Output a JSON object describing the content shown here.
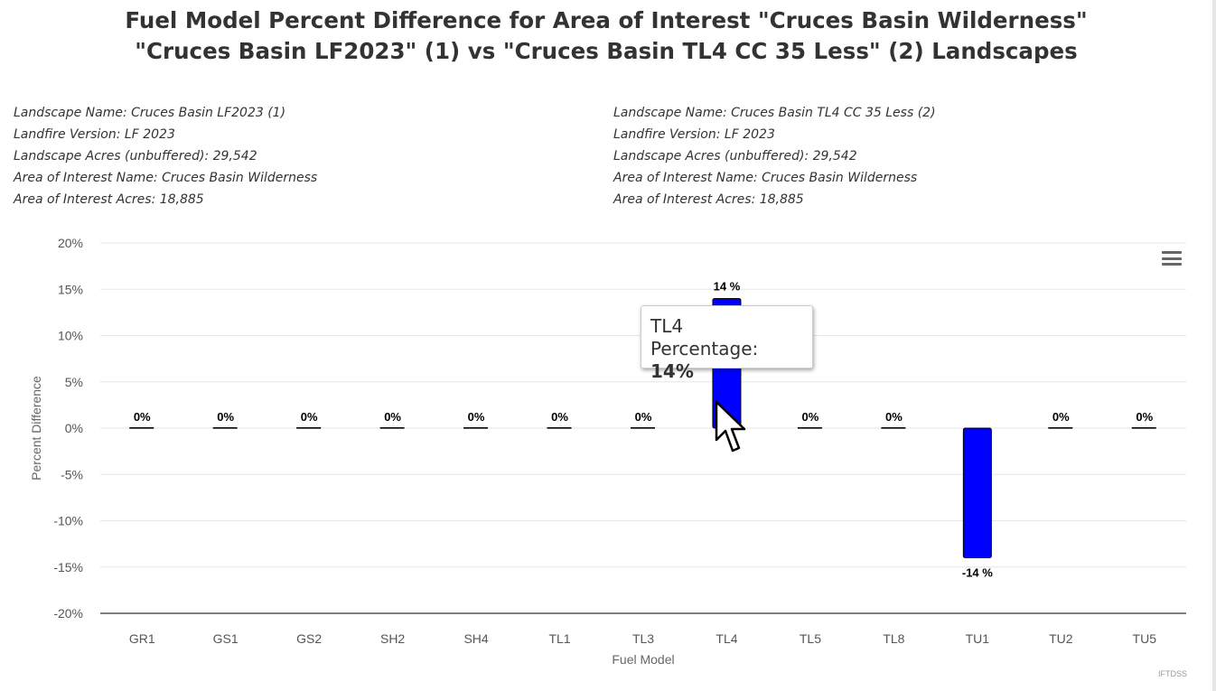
{
  "title": {
    "line1": "Fuel Model Percent Difference for Area of Interest \"Cruces Basin Wilderness\"",
    "line2": "\"Cruces Basin LF2023\" (1) vs \"Cruces Basin TL4 CC 35 Less\" (2) Landscapes"
  },
  "info_left": [
    "Landscape Name: Cruces Basin LF2023 (1)",
    "Landfire Version: LF 2023",
    "Landscape Acres (unbuffered): 29,542",
    "Area of Interest Name: Cruces Basin Wilderness",
    "Area of Interest Acres: 18,885"
  ],
  "info_right": [
    "Landscape Name: Cruces Basin TL4 CC 35 Less (2)",
    "Landfire Version: LF 2023",
    "Landscape Acres (unbuffered): 29,542",
    "Area of Interest Name: Cruces Basin Wilderness",
    "Area of Interest Acres: 18,885"
  ],
  "chart_data": {
    "type": "bar",
    "categories": [
      "GR1",
      "GS1",
      "GS2",
      "SH2",
      "SH4",
      "TL1",
      "TL3",
      "TL4",
      "TL5",
      "TL8",
      "TU1",
      "TU2",
      "TU5"
    ],
    "values": [
      0,
      0,
      0,
      0,
      0,
      0,
      0,
      14,
      0,
      0,
      -14,
      0,
      0
    ],
    "data_labels": [
      "0%",
      "0%",
      "0%",
      "0%",
      "0%",
      "0%",
      "0%",
      "14 %",
      "0%",
      "0%",
      "-14 %",
      "0%",
      "0%"
    ],
    "xlabel": "Fuel Model",
    "ylabel": "Percent Difference",
    "ylim": [
      -20,
      20
    ],
    "yticks": [
      20,
      15,
      10,
      5,
      0,
      -5,
      -10,
      -15,
      -20
    ],
    "ytick_suffix": "%",
    "grid": true,
    "bar_color": "#0000ff",
    "zero_bar_color": "#000000"
  },
  "tooltip": {
    "category": "TL4",
    "label": "Percentage: ",
    "value": "14%"
  },
  "credit": "IFTDSS",
  "menu": {
    "icon": "hamburger-menu-icon"
  }
}
